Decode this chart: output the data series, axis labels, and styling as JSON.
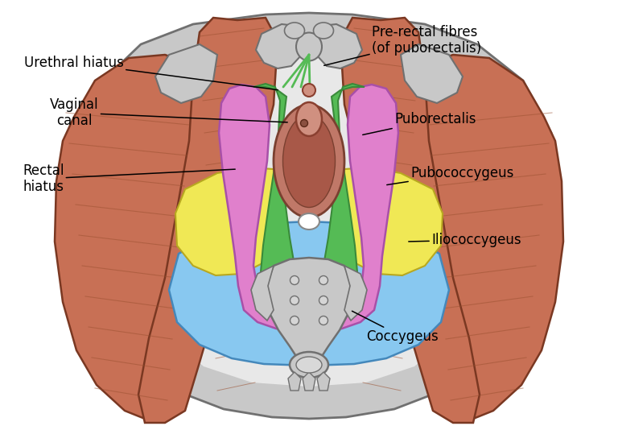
{
  "background_color": "#ffffff",
  "figsize": [
    7.68,
    5.29
  ],
  "dpi": 100,
  "labels": {
    "urethral_hiatus": "Urethral hiatus",
    "vaginal_canal": "Vaginal\ncanal",
    "rectal_hiatus": "Rectal\nhiatus",
    "pre_rectal": "Pre-rectal fibres\n(of puborectalis)",
    "puborectalis": "Puborectalis",
    "pubococcygeus": "Pubococcygeus",
    "iliococcygeus": "Iliococcygeus",
    "coccygeus": "Coccygeus"
  },
  "colors": {
    "muscle_salmon": "#c87055",
    "bone_gray": "#b8b8b8",
    "bone_fill": "#c8c8c8",
    "bone_edge": "#707070",
    "pubococcygeus": "#e080cc",
    "iliococcygeus": "#f0e855",
    "coccygeus": "#88c8f0",
    "puborectalis": "#55bb55",
    "rectal_brown": "#c07060",
    "black": "#000000",
    "white": "#ffffff",
    "muscle_edge": "#7a3822",
    "gray_light": "#d5d5d5"
  }
}
